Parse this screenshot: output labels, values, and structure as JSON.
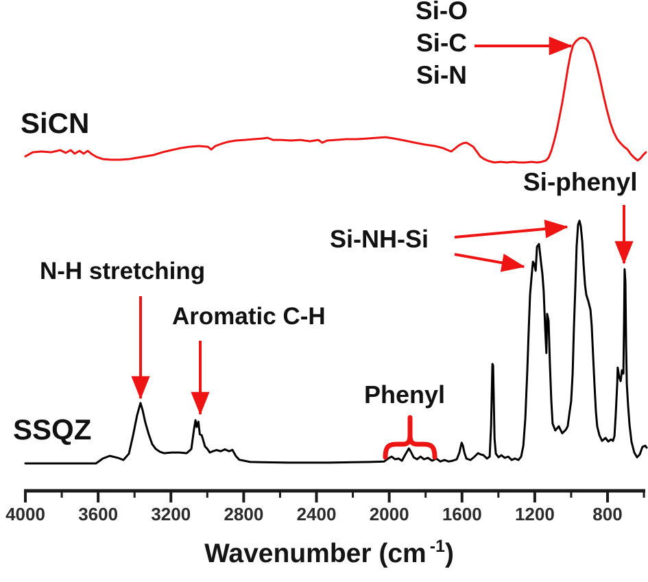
{
  "colors": {
    "trace_sicn_red": "#ee1414",
    "trace_ssqz_black": "#000000",
    "annotation_red": "#ee1414",
    "axis_black": "#1a1a1a",
    "background": "#ffffff"
  },
  "axis": {
    "label_main": "Wavenumber (cm",
    "label_sup": "-1",
    "label_close": ")"
  },
  "chart_data": {
    "type": "line",
    "xlabel": "Wavenumber (cm-1)",
    "x_axis": {
      "min": 590,
      "max": 4000,
      "reversed": true,
      "units": "cm-1",
      "major_ticks": [
        4000,
        3600,
        3200,
        2800,
        2400,
        2000,
        1600,
        1200,
        800
      ],
      "minor_ticks": [
        3800,
        3400,
        3000,
        2600,
        2200,
        1800,
        1400,
        1000,
        600
      ]
    },
    "y_axis": {
      "shown": false,
      "units": "arbitrary intensity, normalized 0-1 per series"
    },
    "legend_position": "traces labeled at left of each curve",
    "grid": false,
    "series": [
      {
        "name": "SiCN",
        "color": "#ee1414",
        "peaks": [
          {
            "assignment": "Si-O / Si-C / Si-N",
            "wavenumber_cm1": 930
          }
        ],
        "points": [
          [
            4000,
            0.049
          ],
          [
            3959,
            0.082
          ],
          [
            3913,
            0.088
          ],
          [
            3857,
            0.082
          ],
          [
            3808,
            0.099
          ],
          [
            3778,
            0.077
          ],
          [
            3751,
            0.099
          ],
          [
            3729,
            0.071
          ],
          [
            3702,
            0.093
          ],
          [
            3680,
            0.071
          ],
          [
            3657,
            0.093
          ],
          [
            3634,
            0.066
          ],
          [
            3608,
            0.044
          ],
          [
            3574,
            0.027
          ],
          [
            3529,
            0.022
          ],
          [
            3480,
            0.022
          ],
          [
            3431,
            0.027
          ],
          [
            3386,
            0.038
          ],
          [
            3340,
            0.049
          ],
          [
            3295,
            0.06
          ],
          [
            3246,
            0.082
          ],
          [
            3197,
            0.099
          ],
          [
            3148,
            0.115
          ],
          [
            3099,
            0.126
          ],
          [
            3046,
            0.132
          ],
          [
            2997,
            0.126
          ],
          [
            2978,
            0.104
          ],
          [
            2956,
            0.132
          ],
          [
            2926,
            0.148
          ],
          [
            2888,
            0.165
          ],
          [
            2843,
            0.176
          ],
          [
            2794,
            0.181
          ],
          [
            2745,
            0.187
          ],
          [
            2699,
            0.192
          ],
          [
            2669,
            0.198
          ],
          [
            2639,
            0.181
          ],
          [
            2594,
            0.181
          ],
          [
            2541,
            0.176
          ],
          [
            2488,
            0.181
          ],
          [
            2436,
            0.17
          ],
          [
            2390,
            0.181
          ],
          [
            2368,
            0.159
          ],
          [
            2341,
            0.176
          ],
          [
            2292,
            0.181
          ],
          [
            2236,
            0.187
          ],
          [
            2179,
            0.187
          ],
          [
            2123,
            0.192
          ],
          [
            2066,
            0.198
          ],
          [
            2021,
            0.203
          ],
          [
            1972,
            0.192
          ],
          [
            1915,
            0.176
          ],
          [
            1859,
            0.159
          ],
          [
            1802,
            0.143
          ],
          [
            1749,
            0.132
          ],
          [
            1704,
            0.115
          ],
          [
            1678,
            0.099
          ],
          [
            1659,
            0.088
          ],
          [
            1640,
            0.11
          ],
          [
            1617,
            0.137
          ],
          [
            1595,
            0.154
          ],
          [
            1576,
            0.159
          ],
          [
            1557,
            0.143
          ],
          [
            1538,
            0.126
          ],
          [
            1519,
            0.088
          ],
          [
            1500,
            0.049
          ],
          [
            1478,
            0.027
          ],
          [
            1452,
            0.011
          ],
          [
            1421,
            0
          ],
          [
            1387,
            0.005
          ],
          [
            1354,
            0
          ],
          [
            1320,
            0.005
          ],
          [
            1286,
            0
          ],
          [
            1252,
            0
          ],
          [
            1218,
            0.005
          ],
          [
            1188,
            0
          ],
          [
            1162,
            0.005
          ],
          [
            1139,
            0.016
          ],
          [
            1124,
            0.038
          ],
          [
            1109,
            0.093
          ],
          [
            1094,
            0.17
          ],
          [
            1079,
            0.258
          ],
          [
            1064,
            0.368
          ],
          [
            1049,
            0.478
          ],
          [
            1034,
            0.61
          ],
          [
            1019,
            0.747
          ],
          [
            1004,
            0.863
          ],
          [
            989,
            0.94
          ],
          [
            973,
            0.973
          ],
          [
            954,
            0.995
          ],
          [
            936,
            1
          ],
          [
            917,
            0.989
          ],
          [
            898,
            0.956
          ],
          [
            879,
            0.885
          ],
          [
            860,
            0.78
          ],
          [
            841,
            0.665
          ],
          [
            822,
            0.533
          ],
          [
            803,
            0.418
          ],
          [
            785,
            0.319
          ],
          [
            766,
            0.242
          ],
          [
            747,
            0.187
          ],
          [
            728,
            0.154
          ],
          [
            709,
            0.126
          ],
          [
            690,
            0.104
          ],
          [
            672,
            0.066
          ],
          [
            653,
            0.038
          ],
          [
            634,
            0.016
          ],
          [
            619,
            0.033
          ],
          [
            604,
            0.06
          ],
          [
            589,
            0.082
          ]
        ]
      },
      {
        "name": "SSQZ",
        "color": "#000000",
        "peaks": [
          {
            "assignment": "N-H stretching",
            "wavenumber_cm1": 3370
          },
          {
            "assignment": "Aromatic C-H",
            "wavenumber_cm1": 3060
          },
          {
            "assignment": "Phenyl",
            "wavenumber_range_cm1": [
              2010,
              1720
            ]
          },
          {
            "assignment": "Si-NH-Si",
            "wavenumber_cm1": 1180
          },
          {
            "assignment": "Si-NH-Si",
            "wavenumber_cm1": 960
          },
          {
            "assignment": "Si-phenyl",
            "wavenumber_cm1": 700
          }
        ],
        "points": [
          [
            4000,
            0
          ],
          [
            3612,
            0
          ],
          [
            3574,
            0.02
          ],
          [
            3536,
            0.031
          ],
          [
            3491,
            0.023
          ],
          [
            3461,
            0.014
          ],
          [
            3431,
            0.04
          ],
          [
            3408,
            0.116
          ],
          [
            3386,
            0.198
          ],
          [
            3367,
            0.249
          ],
          [
            3356,
            0.22
          ],
          [
            3341,
            0.17
          ],
          [
            3322,
            0.12
          ],
          [
            3303,
            0.08
          ],
          [
            3284,
            0.06
          ],
          [
            3261,
            0.048
          ],
          [
            3238,
            0.042
          ],
          [
            3197,
            0.045
          ],
          [
            3152,
            0.045
          ],
          [
            3114,
            0.042
          ],
          [
            3088,
            0.059
          ],
          [
            3073,
            0.14
          ],
          [
            3065,
            0.178
          ],
          [
            3058,
            0.15
          ],
          [
            3049,
            0.172
          ],
          [
            3041,
            0.12
          ],
          [
            3031,
            0.116
          ],
          [
            3024,
            0.1
          ],
          [
            3013,
            0.07
          ],
          [
            3000,
            0.06
          ],
          [
            2986,
            0.045
          ],
          [
            2970,
            0.05
          ],
          [
            2949,
            0.055
          ],
          [
            2926,
            0.05
          ],
          [
            2903,
            0.058
          ],
          [
            2880,
            0.05
          ],
          [
            2862,
            0.056
          ],
          [
            2843,
            0.03
          ],
          [
            2824,
            0.015
          ],
          [
            2764,
            0.006
          ],
          [
            2556,
            0.003
          ],
          [
            2330,
            0.003
          ],
          [
            2104,
            0.006
          ],
          [
            2028,
            0.008
          ],
          [
            2006,
            0.02
          ],
          [
            1987,
            0.028
          ],
          [
            1968,
            0.017
          ],
          [
            1949,
            0.02
          ],
          [
            1930,
            0.011
          ],
          [
            1911,
            0.037
          ],
          [
            1892,
            0.062
          ],
          [
            1881,
            0.048
          ],
          [
            1866,
            0.025
          ],
          [
            1847,
            0.017
          ],
          [
            1828,
            0.028
          ],
          [
            1809,
            0.017
          ],
          [
            1787,
            0.023
          ],
          [
            1764,
            0.011
          ],
          [
            1741,
            0.02
          ],
          [
            1719,
            0.008
          ],
          [
            1696,
            0.014
          ],
          [
            1674,
            0.008
          ],
          [
            1651,
            0.011
          ],
          [
            1629,
            0.017
          ],
          [
            1614,
            0.045
          ],
          [
            1602,
            0.085
          ],
          [
            1595,
            0.073
          ],
          [
            1587,
            0.045
          ],
          [
            1576,
            0.02
          ],
          [
            1553,
            0.014
          ],
          [
            1531,
            0.028
          ],
          [
            1512,
            0.042
          ],
          [
            1497,
            0.037
          ],
          [
            1482,
            0.034
          ],
          [
            1463,
            0.02
          ],
          [
            1448,
            0.028
          ],
          [
            1440,
            0.158
          ],
          [
            1433,
            0.41
          ],
          [
            1429,
            0.404
          ],
          [
            1421,
            0.102
          ],
          [
            1414,
            0.04
          ],
          [
            1399,
            0.025
          ],
          [
            1384,
            0.034
          ],
          [
            1365,
            0.023
          ],
          [
            1346,
            0.028
          ],
          [
            1327,
            0.014
          ],
          [
            1309,
            0.02
          ],
          [
            1290,
            0.014
          ],
          [
            1275,
            0.028
          ],
          [
            1263,
            0.073
          ],
          [
            1252,
            0.186
          ],
          [
            1241,
            0.384
          ],
          [
            1233,
            0.554
          ],
          [
            1226,
            0.695
          ],
          [
            1218,
            0.766
          ],
          [
            1210,
            0.831
          ],
          [
            1203,
            0.822
          ],
          [
            1195,
            0.794
          ],
          [
            1188,
            0.893
          ],
          [
            1177,
            0.904
          ],
          [
            1166,
            0.831
          ],
          [
            1158,
            0.78
          ],
          [
            1151,
            0.709
          ],
          [
            1143,
            0.559
          ],
          [
            1136,
            0.455
          ],
          [
            1132,
            0.616
          ],
          [
            1124,
            0.588
          ],
          [
            1117,
            0.412
          ],
          [
            1109,
            0.257
          ],
          [
            1102,
            0.164
          ],
          [
            1087,
            0.136
          ],
          [
            1068,
            0.153
          ],
          [
            1049,
            0.124
          ],
          [
            1030,
            0.138
          ],
          [
            1019,
            0.153
          ],
          [
            1008,
            0.215
          ],
          [
            1000,
            0.255
          ],
          [
            992,
            0.37
          ],
          [
            985,
            0.554
          ],
          [
            977,
            0.723
          ],
          [
            970,
            0.893
          ],
          [
            962,
            0.983
          ],
          [
            954,
            1
          ],
          [
            947,
            0.977
          ],
          [
            939,
            0.915
          ],
          [
            932,
            0.822
          ],
          [
            924,
            0.737
          ],
          [
            917,
            0.695
          ],
          [
            905,
            0.667
          ],
          [
            894,
            0.633
          ],
          [
            887,
            0.568
          ],
          [
            879,
            0.441
          ],
          [
            872,
            0.328
          ],
          [
            864,
            0.215
          ],
          [
            857,
            0.153
          ],
          [
            845,
            0.116
          ],
          [
            830,
            0.093
          ],
          [
            811,
            0.105
          ],
          [
            796,
            0.09
          ],
          [
            781,
            0.099
          ],
          [
            770,
            0.093
          ],
          [
            762,
            0.113
          ],
          [
            755,
            0.198
          ],
          [
            747,
            0.328
          ],
          [
            744,
            0.395
          ],
          [
            736,
            0.356
          ],
          [
            728,
            0.339
          ],
          [
            721,
            0.384
          ],
          [
            713,
            0.37
          ],
          [
            709,
            0.582
          ],
          [
            706,
            0.8
          ],
          [
            702,
            0.751
          ],
          [
            698,
            0.483
          ],
          [
            694,
            0.328
          ],
          [
            687,
            0.237
          ],
          [
            679,
            0.158
          ],
          [
            668,
            0.088
          ],
          [
            653,
            0.045
          ],
          [
            638,
            0.025
          ],
          [
            623,
            0.037
          ],
          [
            608,
            0.068
          ],
          [
            593,
            0.073
          ],
          [
            585,
            0.065
          ]
        ]
      }
    ],
    "annotations": [
      {
        "id": "si_o",
        "text": "Si-O"
      },
      {
        "id": "si_c",
        "text": "Si-C",
        "arrow_target_cm1": 930,
        "series": "SiCN"
      },
      {
        "id": "si_n",
        "text": "Si-N"
      },
      {
        "id": "si_phenyl",
        "text": "Si-phenyl",
        "arrow_target_cm1": 700,
        "series": "SSQZ"
      },
      {
        "id": "si_nh_si",
        "text": "Si-NH-Si",
        "arrow_targets_cm1": [
          960,
          1180
        ],
        "series": "SSQZ"
      },
      {
        "id": "nh_stretching",
        "text": "N-H stretching",
        "arrow_target_cm1": 3370,
        "series": "SSQZ"
      },
      {
        "id": "aromatic_ch",
        "text": "Aromatic C-H",
        "arrow_target_cm1": 3060,
        "series": "SSQZ"
      },
      {
        "id": "phenyl",
        "text": "Phenyl",
        "brace_range_cm1": [
          2010,
          1720
        ],
        "series": "SSQZ"
      }
    ]
  }
}
